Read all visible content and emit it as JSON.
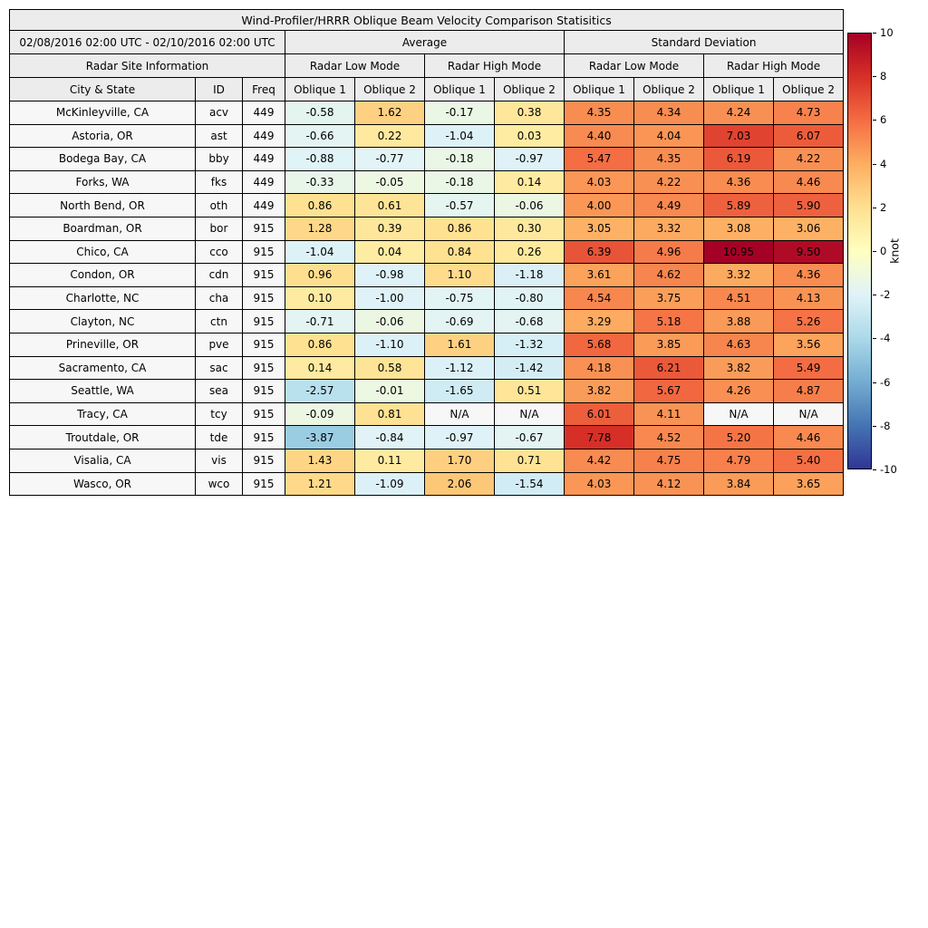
{
  "chart_data": {
    "type": "table",
    "title": "Wind-Profiler/HRRR Oblique Beam Velocity Comparison Statisitics",
    "date_range": "02/08/2016 02:00 UTC - 02/10/2016 02:00 UTC",
    "site_info_header": "Radar Site Information",
    "group_columns": [
      "Average",
      "Standard Deviation"
    ],
    "mode_columns": [
      "Radar Low Mode",
      "Radar High Mode",
      "Radar Low Mode",
      "Radar High Mode"
    ],
    "columns": [
      "City & State",
      "ID",
      "Freq",
      "Oblique 1",
      "Oblique 2",
      "Oblique 1",
      "Oblique 2",
      "Oblique 1",
      "Oblique 2",
      "Oblique 1",
      "Oblique 2"
    ],
    "rows": [
      {
        "city": "McKinleyville, CA",
        "id": "acv",
        "freq": "449",
        "values": [
          -0.58,
          1.62,
          -0.17,
          0.38,
          4.35,
          4.34,
          4.24,
          4.73
        ]
      },
      {
        "city": "Astoria, OR",
        "id": "ast",
        "freq": "449",
        "values": [
          -0.66,
          0.22,
          -1.04,
          0.03,
          4.4,
          4.04,
          7.03,
          6.07
        ]
      },
      {
        "city": "Bodega Bay, CA",
        "id": "bby",
        "freq": "449",
        "values": [
          -0.88,
          -0.77,
          -0.18,
          -0.97,
          5.47,
          4.35,
          6.19,
          4.22
        ]
      },
      {
        "city": "Forks, WA",
        "id": "fks",
        "freq": "449",
        "values": [
          -0.33,
          -0.05,
          -0.18,
          0.14,
          4.03,
          4.22,
          4.36,
          4.46
        ]
      },
      {
        "city": "North Bend, OR",
        "id": "oth",
        "freq": "449",
        "values": [
          0.86,
          0.61,
          -0.57,
          -0.06,
          4.0,
          4.49,
          5.89,
          5.9
        ]
      },
      {
        "city": "Boardman, OR",
        "id": "bor",
        "freq": "915",
        "values": [
          1.28,
          0.39,
          0.86,
          0.3,
          3.05,
          3.32,
          3.08,
          3.06
        ]
      },
      {
        "city": "Chico, CA",
        "id": "cco",
        "freq": "915",
        "values": [
          -1.04,
          0.04,
          0.84,
          0.26,
          6.39,
          4.96,
          10.95,
          9.5
        ]
      },
      {
        "city": "Condon, OR",
        "id": "cdn",
        "freq": "915",
        "values": [
          0.96,
          -0.98,
          1.1,
          -1.18,
          3.61,
          4.62,
          3.32,
          4.36
        ]
      },
      {
        "city": "Charlotte, NC",
        "id": "cha",
        "freq": "915",
        "values": [
          0.1,
          -1.0,
          -0.75,
          -0.8,
          4.54,
          3.75,
          4.51,
          4.13
        ]
      },
      {
        "city": "Clayton, NC",
        "id": "ctn",
        "freq": "915",
        "values": [
          -0.71,
          -0.06,
          -0.69,
          -0.68,
          3.29,
          5.18,
          3.88,
          5.26
        ]
      },
      {
        "city": "Prineville, OR",
        "id": "pve",
        "freq": "915",
        "values": [
          0.86,
          -1.1,
          1.61,
          -1.32,
          5.68,
          3.85,
          4.63,
          3.56
        ]
      },
      {
        "city": "Sacramento, CA",
        "id": "sac",
        "freq": "915",
        "values": [
          0.14,
          0.58,
          -1.12,
          -1.42,
          4.18,
          6.21,
          3.82,
          5.49
        ]
      },
      {
        "city": "Seattle, WA",
        "id": "sea",
        "freq": "915",
        "values": [
          -2.57,
          -0.01,
          -1.65,
          0.51,
          3.82,
          5.67,
          4.26,
          4.87
        ]
      },
      {
        "city": "Tracy, CA",
        "id": "tcy",
        "freq": "915",
        "values": [
          -0.09,
          0.81,
          "N/A",
          "N/A",
          6.01,
          4.11,
          "N/A",
          "N/A"
        ]
      },
      {
        "city": "Troutdale, OR",
        "id": "tde",
        "freq": "915",
        "values": [
          -3.87,
          -0.84,
          -0.97,
          -0.67,
          7.78,
          4.52,
          5.2,
          4.46
        ]
      },
      {
        "city": "Visalia, CA",
        "id": "vis",
        "freq": "915",
        "values": [
          1.43,
          0.11,
          1.7,
          0.71,
          4.42,
          4.75,
          4.79,
          5.4
        ]
      },
      {
        "city": "Wasco, OR",
        "id": "wco",
        "freq": "915",
        "values": [
          1.21,
          -1.09,
          2.06,
          -1.54,
          4.03,
          4.12,
          3.84,
          3.65
        ]
      }
    ],
    "colorbar": {
      "label": "knot",
      "min": -10,
      "max": 10,
      "ticks": [
        10,
        8,
        6,
        4,
        2,
        0,
        -2,
        -4,
        -6,
        -8,
        -10
      ],
      "stops": [
        "#313695",
        "#4575b4",
        "#74add1",
        "#abd9e9",
        "#e0f3f8",
        "#ffffbf",
        "#fee090",
        "#fdae61",
        "#f46d43",
        "#d73027",
        "#a50026"
      ]
    }
  }
}
